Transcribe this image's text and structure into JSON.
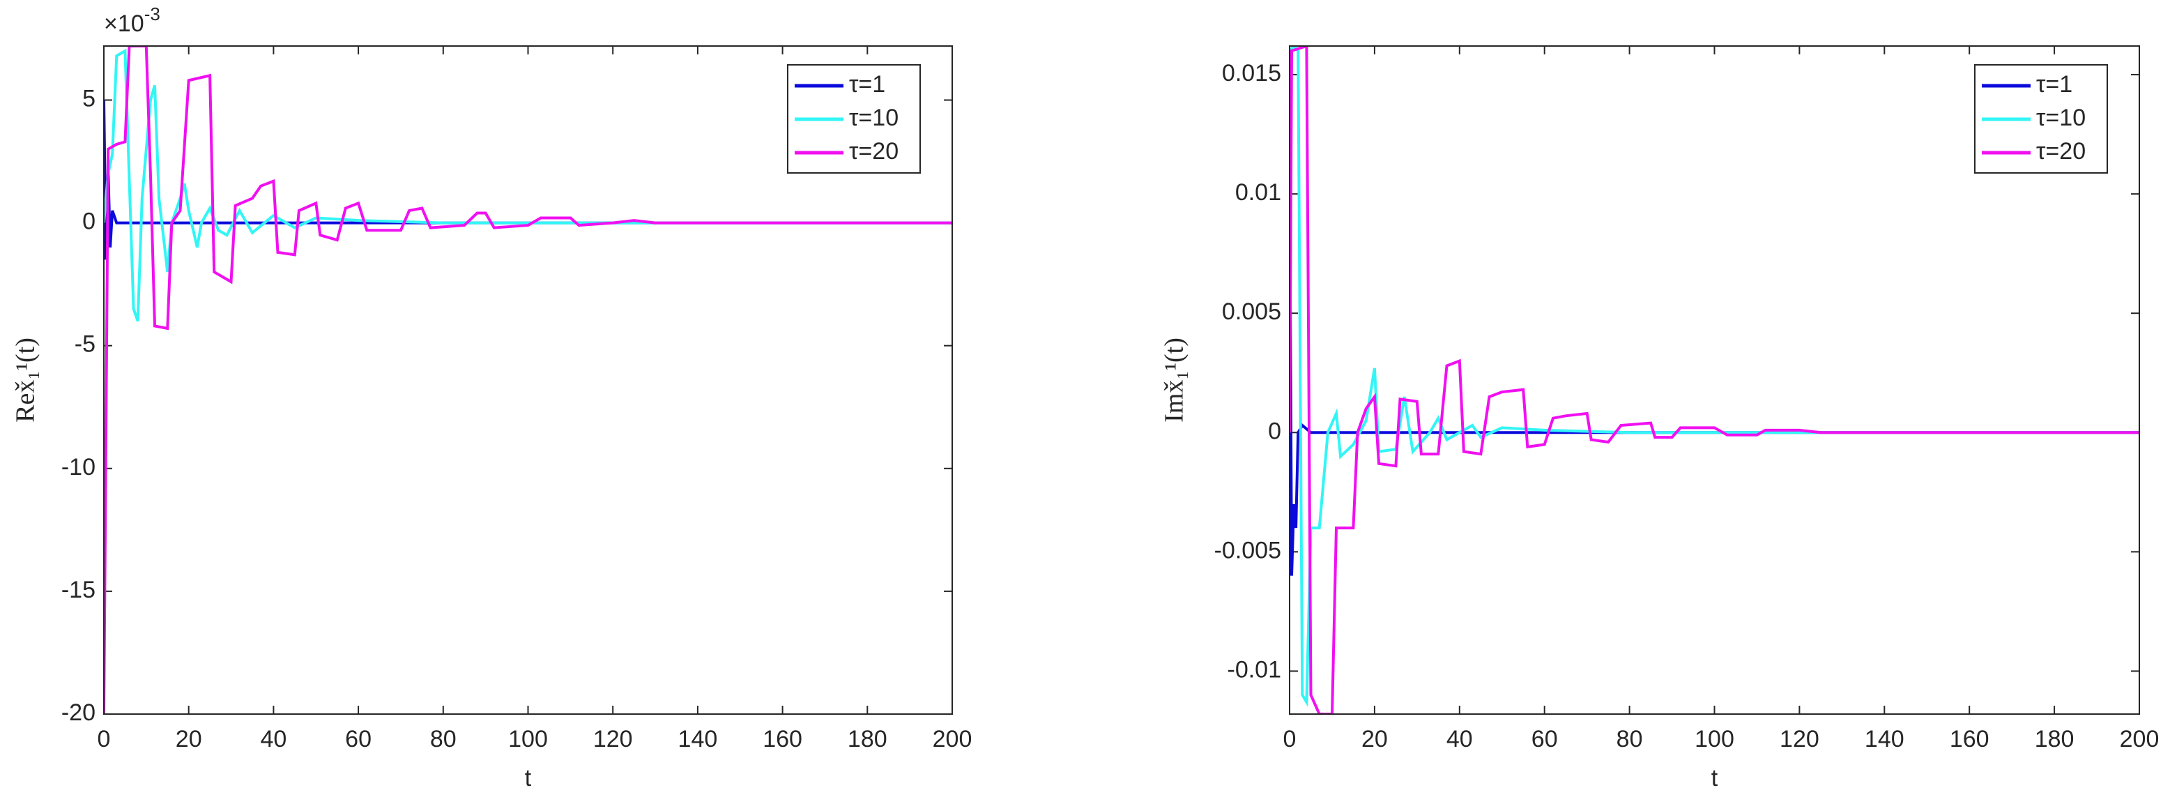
{
  "chart_data": [
    {
      "type": "line",
      "xlabel": "t",
      "ylabel": "Rex̌₁¹(t)",
      "multiplier": {
        "base": "×10",
        "exponent": "-3"
      },
      "xlim": [
        0,
        200
      ],
      "xticks": [
        0,
        20,
        40,
        60,
        80,
        100,
        120,
        140,
        160,
        180,
        200
      ],
      "ylim": [
        -20,
        7.2
      ],
      "yticks": [
        -20,
        -15,
        -10,
        -5,
        0,
        5
      ],
      "grid": false,
      "legend": "top-right",
      "series": [
        {
          "name": "τ=1",
          "color": "#0a0adc",
          "x": [
            0,
            0.5,
            1,
            1.5,
            2,
            3,
            200
          ],
          "values": [
            5,
            -1.5,
            2.2,
            -1,
            0.5,
            0,
            0
          ]
        },
        {
          "name": "τ=10",
          "color": "#33f5f5",
          "x": [
            0,
            1,
            2,
            3,
            5,
            7,
            8,
            9,
            11,
            12,
            13,
            15,
            16,
            18,
            19,
            20,
            22,
            23,
            25,
            27,
            29,
            32,
            35,
            40,
            45,
            50,
            60,
            80,
            200
          ],
          "values": [
            0,
            2,
            2.8,
            6.8,
            7,
            -3.5,
            -4,
            1,
            5,
            5.6,
            1,
            -2,
            0,
            1,
            1.6,
            0.5,
            -1,
            0,
            0.6,
            -0.3,
            -0.5,
            0.5,
            -0.4,
            0.3,
            -0.2,
            0.2,
            0.1,
            0,
            0
          ]
        },
        {
          "name": "τ=20",
          "color": "#f010f0",
          "x": [
            0,
            1,
            3,
            5,
            6,
            10,
            11,
            12,
            15,
            16,
            18,
            20,
            25,
            26,
            30,
            31,
            35,
            37,
            40,
            41,
            45,
            46,
            50,
            51,
            55,
            57,
            60,
            62,
            70,
            72,
            75,
            77,
            85,
            88,
            90,
            92,
            100,
            103,
            110,
            112,
            120,
            125,
            130,
            200
          ],
          "values": [
            -20,
            3,
            3.2,
            3.3,
            7.2,
            7.2,
            2,
            -4.2,
            -4.3,
            0,
            0.5,
            5.8,
            6,
            -2,
            -2.4,
            0.7,
            1,
            1.5,
            1.7,
            -1.2,
            -1.3,
            0.5,
            0.8,
            -0.5,
            -0.7,
            0.6,
            0.8,
            -0.3,
            -0.3,
            0.5,
            0.6,
            -0.2,
            -0.1,
            0.4,
            0.4,
            -0.2,
            -0.1,
            0.2,
            0.2,
            -0.1,
            0,
            0.1,
            0,
            0
          ]
        }
      ]
    },
    {
      "type": "line",
      "xlabel": "t",
      "ylabel": "Imx̌₁¹(t)",
      "xlim": [
        0,
        200
      ],
      "xticks": [
        0,
        20,
        40,
        60,
        80,
        100,
        120,
        140,
        160,
        180,
        200
      ],
      "ylim": [
        -0.0118,
        0.0162
      ],
      "yticks": [
        -0.01,
        -0.005,
        0,
        0.005,
        0.01,
        0.015
      ],
      "grid": false,
      "legend": "top-right",
      "series": [
        {
          "name": "τ=1",
          "color": "#0a0adc",
          "x": [
            0,
            0.5,
            1,
            1.5,
            2,
            3,
            5,
            200
          ],
          "values": [
            0.0115,
            -0.006,
            -0.003,
            -0.004,
            0,
            0.0003,
            0,
            0
          ]
        },
        {
          "name": "τ=10",
          "color": "#33f5f5",
          "x": [
            0,
            1,
            2,
            3,
            4,
            5,
            7,
            9,
            11,
            12,
            15,
            18,
            20,
            21,
            25,
            27,
            29,
            33,
            35,
            37,
            40,
            43,
            45,
            50,
            60,
            80,
            200
          ],
          "values": [
            0.016,
            0.0162,
            0.016,
            -0.011,
            -0.0113,
            -0.004,
            -0.004,
            0,
            0.0008,
            -0.001,
            -0.0005,
            0.0005,
            0.0027,
            -0.0008,
            -0.0007,
            0.0015,
            -0.0008,
            0,
            0.0006,
            -0.0003,
            0,
            0.0003,
            -0.0002,
            0.0002,
            0.0001,
            0,
            0
          ]
        },
        {
          "name": "τ=20",
          "color": "#f010f0",
          "x": [
            0,
            0.5,
            4,
            5,
            7,
            10,
            11,
            15,
            16,
            18,
            20,
            21,
            25,
            26,
            30,
            31,
            35,
            37,
            40,
            41,
            45,
            47,
            50,
            55,
            56,
            60,
            62,
            65,
            70,
            71,
            75,
            78,
            85,
            86,
            90,
            92,
            100,
            103,
            110,
            112,
            120,
            125,
            200
          ],
          "values": [
            0,
            0.016,
            0.0162,
            -0.011,
            -0.0118,
            -0.0118,
            -0.004,
            -0.004,
            0,
            0.001,
            0.0015,
            -0.0013,
            -0.0014,
            0.0014,
            0.0013,
            -0.0009,
            -0.0009,
            0.0028,
            0.003,
            -0.0008,
            -0.0009,
            0.0015,
            0.0017,
            0.0018,
            -0.0006,
            -0.0005,
            0.0006,
            0.0007,
            0.0008,
            -0.0003,
            -0.0004,
            0.0003,
            0.0004,
            -0.0002,
            -0.0002,
            0.0002,
            0.0002,
            -0.0001,
            -0.0001,
            0.0001,
            0.0001,
            0,
            0
          ]
        }
      ]
    }
  ]
}
